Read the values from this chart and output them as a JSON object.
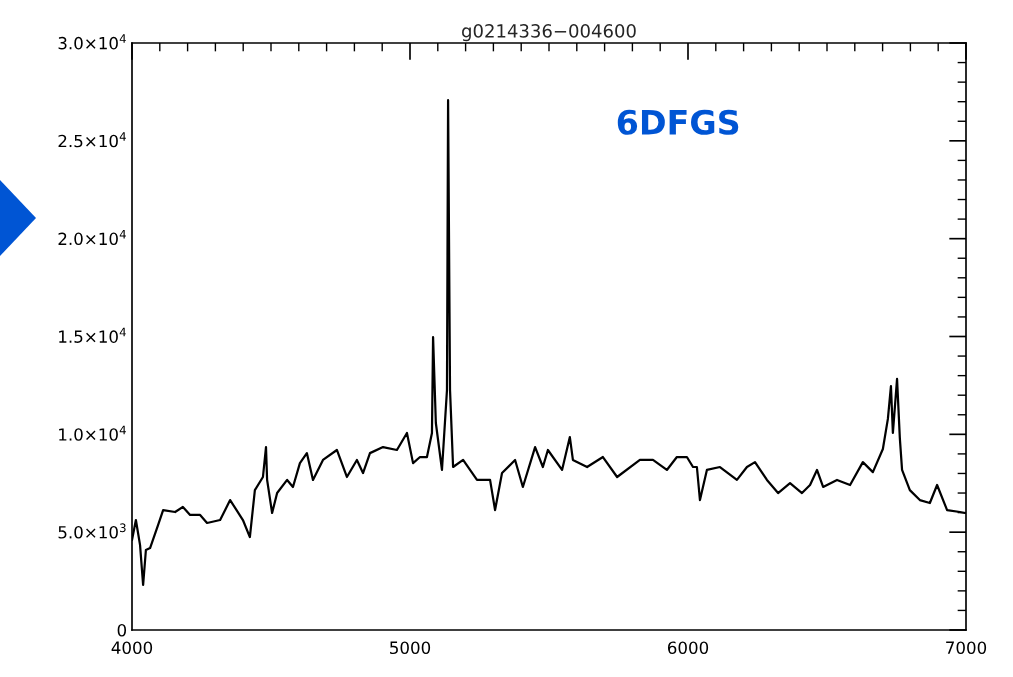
{
  "chart_data": {
    "type": "line",
    "title": "g0214336−004600",
    "x": [
      4000,
      4014,
      4029,
      4040,
      4050,
      4065,
      4094,
      4112,
      4155,
      4183,
      4209,
      4245,
      4270,
      4317,
      4353,
      4399,
      4424,
      4442,
      4471,
      4482,
      4486,
      4504,
      4522,
      4558,
      4579,
      4604,
      4629,
      4651,
      4687,
      4737,
      4773,
      4809,
      4831,
      4856,
      4903,
      4953,
      4989,
      5011,
      5036,
      5061,
      5079,
      5083,
      5093,
      5115,
      5133,
      5137,
      5144,
      5155,
      5191,
      5241,
      5288,
      5306,
      5331,
      5378,
      5406,
      5450,
      5478,
      5496,
      5547,
      5575,
      5586,
      5637,
      5694,
      5745,
      5827,
      5874,
      5924,
      5960,
      5996,
      6018,
      6032,
      6043,
      6068,
      6115,
      6176,
      6212,
      6241,
      6284,
      6324,
      6367,
      6410,
      6439,
      6464,
      6486,
      6536,
      6583,
      6629,
      6665,
      6701,
      6719,
      6730,
      6737,
      6752,
      6762,
      6770,
      6798,
      6834,
      6870,
      6896,
      6932,
      6978,
      6996
    ],
    "series": [
      {
        "color": "#000000",
        "values": [
          4600,
          5620,
          4340,
          2300,
          4090,
          4190,
          5370,
          6130,
          6030,
          6290,
          5880,
          5880,
          5470,
          5620,
          6640,
          5620,
          4750,
          7150,
          7820,
          9350,
          7670,
          5980,
          7000,
          7670,
          7310,
          8530,
          9040,
          7670,
          8690,
          9200,
          7820,
          8690,
          8020,
          9040,
          9350,
          9200,
          10070,
          8530,
          8840,
          8840,
          10070,
          14970,
          10580,
          8180,
          12260,
          27080,
          12260,
          8330,
          8690,
          7670,
          7670,
          6130,
          8020,
          8690,
          7310,
          9350,
          8330,
          9200,
          8180,
          9860,
          8690,
          8330,
          8840,
          7820,
          8690,
          8690,
          8180,
          8840,
          8840,
          8330,
          8330,
          6640,
          8180,
          8330,
          7670,
          8330,
          8580,
          7670,
          7000,
          7510,
          7000,
          7410,
          8180,
          7310,
          7670,
          7410,
          8580,
          8070,
          9250,
          10790,
          12470,
          10070,
          12830,
          9810,
          8180,
          7150,
          6640,
          6490,
          7410,
          6130,
          6030,
          5980
        ]
      }
    ],
    "xlim": [
      4000,
      7000
    ],
    "xticks": [
      4000,
      5000,
      6000,
      7000
    ],
    "ylim": [
      0,
      30000
    ],
    "yticks": [
      0,
      {
        "value": 5000,
        "label": "5.0×10$^{3}$"
      },
      {
        "value": 10000,
        "label": "1.0×10$^{4}$"
      },
      {
        "value": 15000,
        "label": "1.5×10$^{4}$"
      },
      {
        "value": 20000,
        "label": "2.0×10$^{4}$"
      },
      {
        "value": 25000,
        "label": "2.5×10$^{4}$"
      },
      {
        "value": 30000,
        "label": "3.0×10$^{4}$"
      }
    ],
    "annotations": [
      "6DFGS"
    ],
    "grid": false,
    "marker": "none",
    "line_style": "solid"
  }
}
